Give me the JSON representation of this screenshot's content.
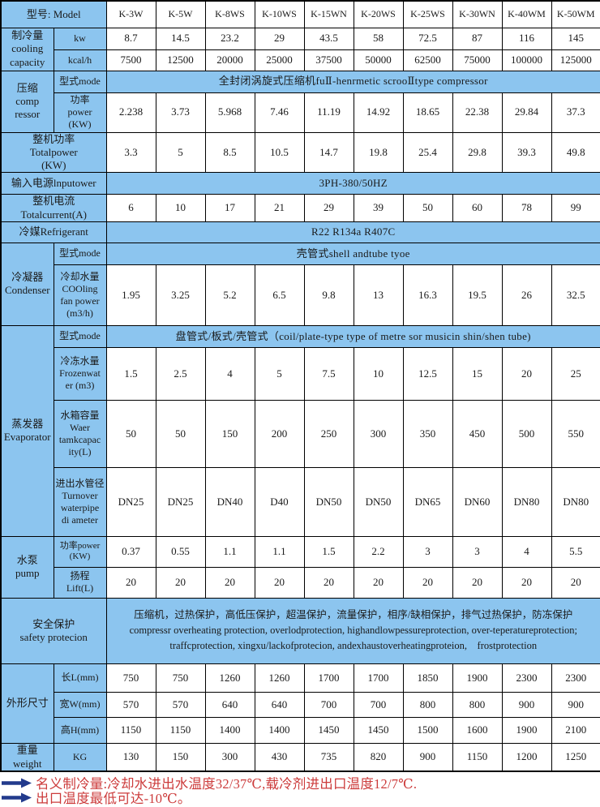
{
  "table": {
    "model_label": "型号: Model",
    "models": [
      "K-3W",
      "K-5W",
      "K-8WS",
      "K-10WS",
      "K-15WN",
      "K-20WS",
      "K-25WS",
      "K-30WN",
      "K-40WM",
      "K-50WM"
    ],
    "cooling": {
      "group": "制冷量\ncooling\ncapacity",
      "kw_label": "kw",
      "kw": [
        "8.7",
        "14.5",
        "23.2",
        "29",
        "43.5",
        "58",
        "72.5",
        "87",
        "116",
        "145"
      ],
      "kcal_label": "kcal/h",
      "kcal": [
        "7500",
        "12500",
        "20000",
        "25000",
        "37500",
        "50000",
        "62500",
        "75000",
        "100000",
        "125000"
      ]
    },
    "compressor": {
      "group": "压缩\ncomp\nressor",
      "mode_label": "型式mode",
      "mode_value": "全封闭涡旋式压缩机fuⅡ-henrmetic scrooⅡtype compressor",
      "power_label": "功率\npower\n(KW)",
      "power": [
        "2.238",
        "3.73",
        "5.968",
        "7.46",
        "11.19",
        "14.92",
        "18.65",
        "22.38",
        "29.84",
        "37.3"
      ]
    },
    "total_power": {
      "label": "整机功率\nTotalpower\n(KW)",
      "values": [
        "3.3",
        "5",
        "8.5",
        "10.5",
        "14.7",
        "19.8",
        "25.4",
        "29.8",
        "39.3",
        "49.8"
      ]
    },
    "input_power": {
      "label": "输入电源lnputower",
      "value": "3PH-380/50HZ"
    },
    "total_current": {
      "label": "整机电流\nTotalcurrent(A)",
      "values": [
        "6",
        "10",
        "17",
        "21",
        "29",
        "39",
        "50",
        "60",
        "78",
        "99"
      ]
    },
    "refrigerant": {
      "label": "冷媒Refrigerant",
      "value": "R22 R134a R407C"
    },
    "condenser": {
      "group": "冷凝器\nCondenser",
      "mode_label": "型式mode",
      "mode_value": "壳管式shell andtube tyoe",
      "water_label": "冷却水量\nCOOling\nfan power\n(m3/h)",
      "water": [
        "1.95",
        "3.25",
        "5.2",
        "6.5",
        "9.8",
        "13",
        "16.3",
        "19.5",
        "26",
        "32.5"
      ]
    },
    "evaporator": {
      "group": "蒸发器\nEvaporator",
      "mode_label": "型式mode",
      "mode_value": "盘管式/板式/壳管式（coil/plate-type type of metre sor musicin shin/shen tube)",
      "frozen_label": "冷冻水量\nFrozenwat\ner (m3)",
      "frozen": [
        "1.5",
        "2.5",
        "4",
        "5",
        "7.5",
        "10",
        "12.5",
        "15",
        "20",
        "25"
      ],
      "tank_label": "水箱容量\nWaer\ntamkcapac\nity(L)",
      "tank": [
        "50",
        "50",
        "150",
        "200",
        "250",
        "300",
        "350",
        "450",
        "500",
        "550"
      ],
      "pipe_label": "进出水管径\nTurnover\nwaterpipe\ndi ameter",
      "pipe": [
        "DN25",
        "DN25",
        "DN40",
        "D40",
        "DN50",
        "DN50",
        "DN65",
        "DN60",
        "DN80",
        "DN80"
      ]
    },
    "pump": {
      "group": "水泵\npump",
      "power_label": "功率power\n(KW)",
      "power": [
        "0.37",
        "0.55",
        "1.1",
        "1.1",
        "1.5",
        "2.2",
        "3",
        "3",
        "4",
        "5.5"
      ],
      "lift_label": "扬程\nLift(L)",
      "lift": [
        "20",
        "20",
        "20",
        "20",
        "20",
        "20",
        "20",
        "20",
        "20",
        "20"
      ]
    },
    "safety": {
      "label": "安全保护\nsafety protecion",
      "value": "压缩机，过热保护，高低压保护，超温保护，流量保护，相序/缺相保护，排气过热保护，防冻保护\ncompressr overheating protection, overlodprotection, highandlowpessureprotection, over-teperatureprotection; traffcprotection, xingxu/lackofprotecion, andexhaustoverheatingproteion,　frostprotection"
    },
    "dimensions": {
      "group": "外形尺寸",
      "length_label": "长L(mm)",
      "length": [
        "750",
        "750",
        "1260",
        "1260",
        "1700",
        "1700",
        "1850",
        "1900",
        "2300",
        "2300"
      ],
      "width_label": "宽W(mm)",
      "width": [
        "570",
        "570",
        "640",
        "640",
        "700",
        "700",
        "800",
        "800",
        "900",
        "900"
      ],
      "height_label": "高H(mm)",
      "height": [
        "1150",
        "1150",
        "1400",
        "1400",
        "1450",
        "1450",
        "1500",
        "1600",
        "1900",
        "2100"
      ]
    },
    "weight": {
      "group": "重量\nweight",
      "unit_label": "KG",
      "values": [
        "130",
        "150",
        "300",
        "430",
        "735",
        "820",
        "900",
        "1150",
        "1200",
        "1250"
      ]
    }
  },
  "footer": {
    "note1": "名义制冷量:冷却水进出水温度32/37℃,载冷剂进出口温度12/7℃.",
    "note2": "出口温度最低可达-10℃。"
  },
  "colors": {
    "header_blue": "#8cc5ef",
    "note_red": "#cc3b3b",
    "arrow_navy": "#223a8c"
  }
}
